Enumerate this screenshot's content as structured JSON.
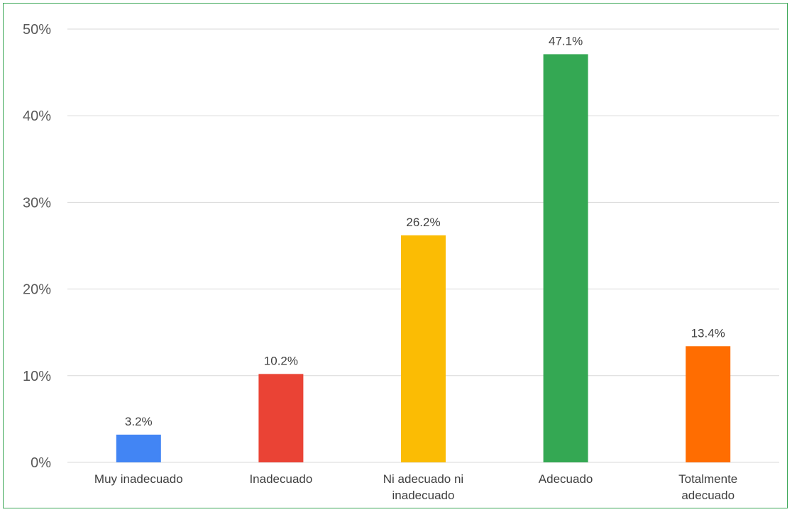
{
  "chart_data": {
    "type": "bar",
    "categories": [
      [
        "Muy inadecuado"
      ],
      [
        "Inadecuado"
      ],
      [
        "Ni adecuado ni",
        "inadecuado"
      ],
      [
        "Adecuado"
      ],
      [
        "Totalmente",
        "adecuado"
      ]
    ],
    "values": [
      3.2,
      10.2,
      26.2,
      47.1,
      13.4
    ],
    "data_labels": [
      "3.2%",
      "10.2%",
      "26.2%",
      "47.1%",
      "13.4%"
    ],
    "colors": [
      "#4285f4",
      "#ea4335",
      "#fbbc04",
      "#34a853",
      "#ff6d01"
    ],
    "y_ticks": [
      0,
      10,
      20,
      30,
      40,
      50
    ],
    "y_tick_labels": [
      "0%",
      "10%",
      "20%",
      "30%",
      "40%",
      "50%"
    ],
    "ylim": [
      0,
      50
    ],
    "grid": true,
    "legend": "none"
  },
  "frame_color": "#3aa655"
}
